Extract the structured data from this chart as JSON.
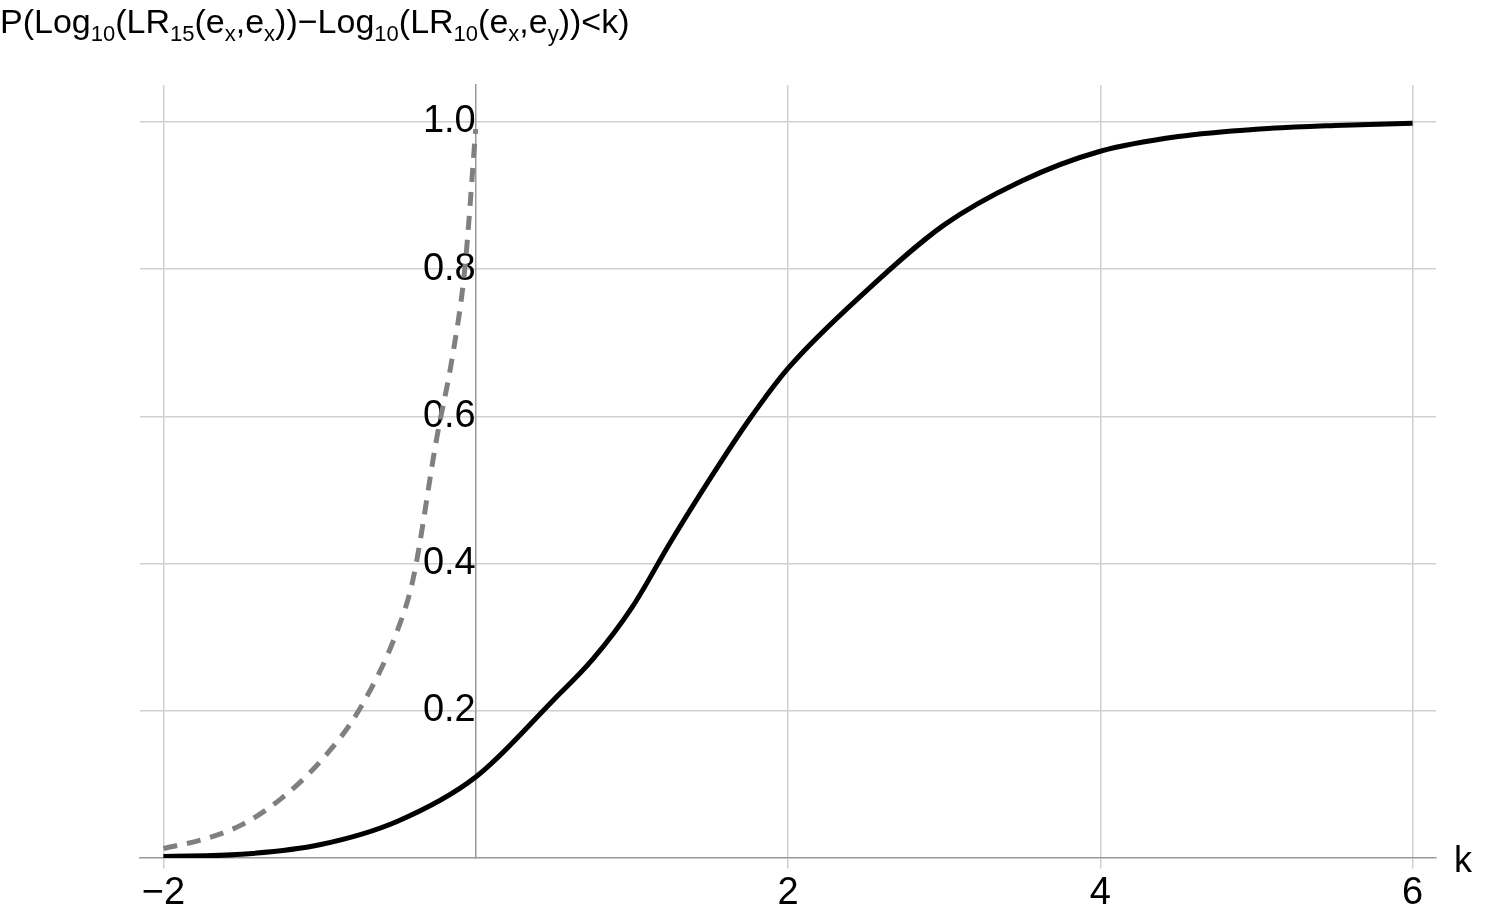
{
  "chart_data": {
    "type": "line",
    "ylabel": "P(Log$_{10}$(LR$_{15}$(e$_{x}$,e$_{x}$))−Log$_{10}$(LR$_{10}$(e$_{x}$,e$_{y}$))<k)",
    "xlabel": "k",
    "xlim": [
      -2.15,
      6.15
    ],
    "ylim": [
      0,
      1.05
    ],
    "xticks": [
      -2,
      2,
      4,
      6
    ],
    "yticks": [
      0.2,
      0.4,
      0.6,
      0.8,
      {
        "value": 1,
        "label": "1.0"
      }
    ],
    "grid": true,
    "legend": false,
    "marker": "none",
    "series": [
      {
        "color": "#000000",
        "line_style": "solid",
        "x": [
          -2,
          -1.5,
          -1,
          -0.5,
          0,
          0.5,
          0.75,
          1,
          1.25,
          1.5,
          1.75,
          2,
          2.5,
          3,
          3.5,
          4,
          4.5,
          5,
          5.5,
          6
        ],
        "values": [
          0.002,
          0.005,
          0.018,
          0.05,
          0.11,
          0.215,
          0.27,
          0.34,
          0.43,
          0.515,
          0.595,
          0.665,
          0.77,
          0.86,
          0.92,
          0.96,
          0.98,
          0.99,
          0.995,
          0.998
        ]
      },
      {
        "color": "#808080",
        "line_style": "dashed",
        "x": [
          -2,
          -1.75,
          -1.5,
          -1.25,
          -1,
          -0.75,
          -0.5,
          -0.4,
          -0.25,
          -0.15,
          -0.07,
          0
        ],
        "values": [
          0.013,
          0.025,
          0.045,
          0.08,
          0.13,
          0.2,
          0.31,
          0.38,
          0.57,
          0.68,
          0.8,
          0.99
        ]
      }
    ]
  }
}
